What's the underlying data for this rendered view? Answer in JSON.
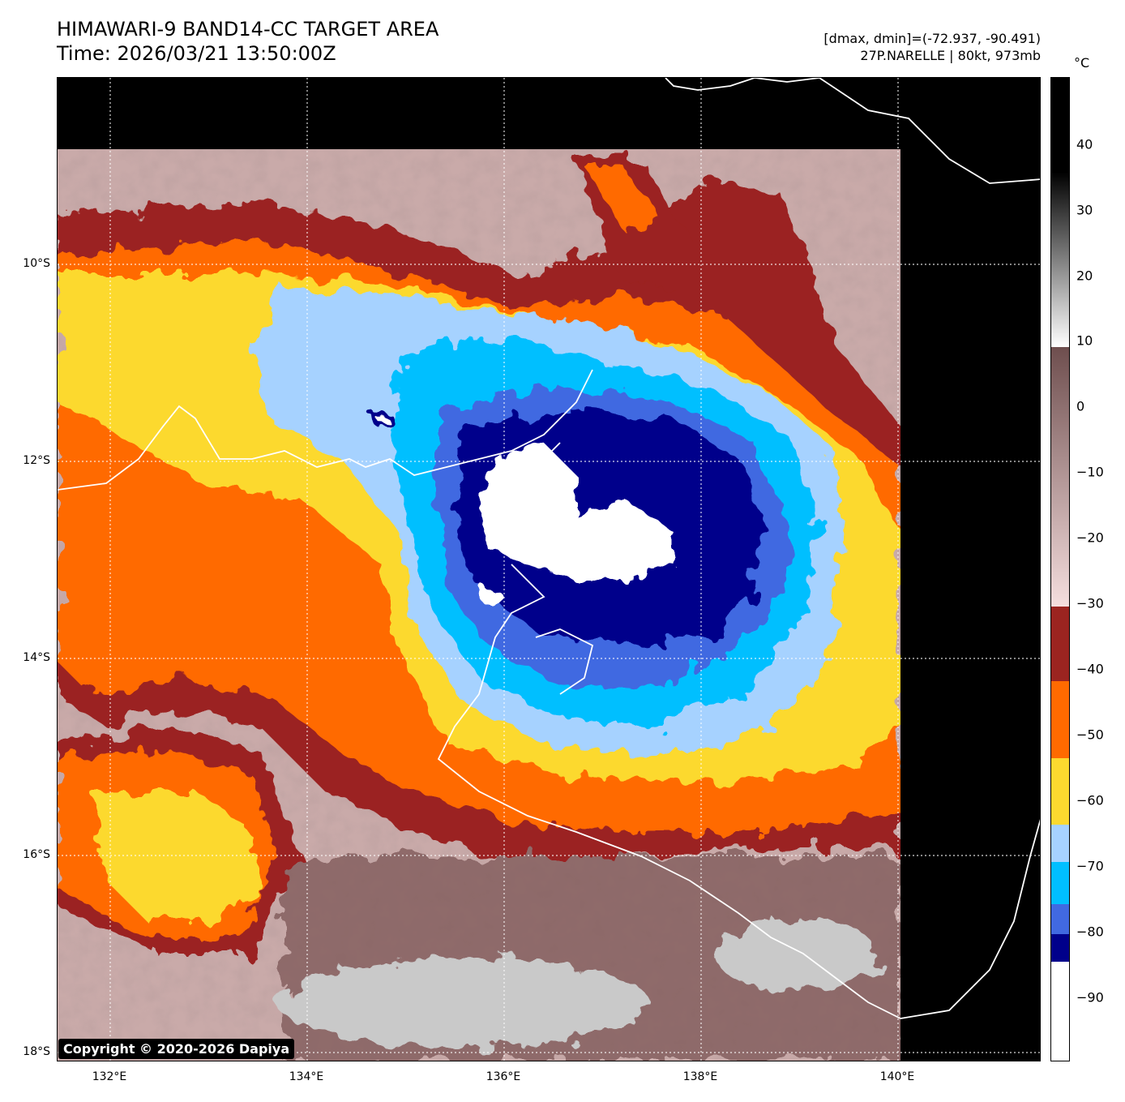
{
  "title_line1": "HIMAWARI-9 BAND14-CC TARGET AREA",
  "title_line2": "Time: 2026/03/21 13:50:00Z",
  "info_line1": "[dmax, dmin]=(-72.937, -90.491)",
  "info_line2": "27P.NARELLE | 80kt, 973mb",
  "colorbar_unit": "°C",
  "x_ticks": [
    "132°E",
    "134°E",
    "136°E",
    "138°E",
    "140°E"
  ],
  "y_ticks": [
    "10°S",
    "12°S",
    "14°S",
    "16°S",
    "18°S"
  ],
  "colorbar_ticks": [
    "40",
    "30",
    "20",
    "10",
    "0",
    "−10",
    "−20",
    "−30",
    "−40",
    "−50",
    "−60",
    "−70",
    "−80",
    "−90"
  ],
  "copyright": "Copyright © 2020-2026 Dapiya",
  "colors": {
    "below_-85": "#ffffff",
    "-85_-80": "#00008b",
    "-80_-75": "#4169e1",
    "-75_-70": "#00bfff",
    "-70_-65": "#a6d2ff",
    "-65_-55": "#fcd92f",
    "-55_-45": "#ff6a00",
    "-45_-35": "#9b2420",
    "cloud_warm": "#7a5656",
    "low_cloud": "#c8a9a9",
    "coastline": "#ffffff"
  }
}
